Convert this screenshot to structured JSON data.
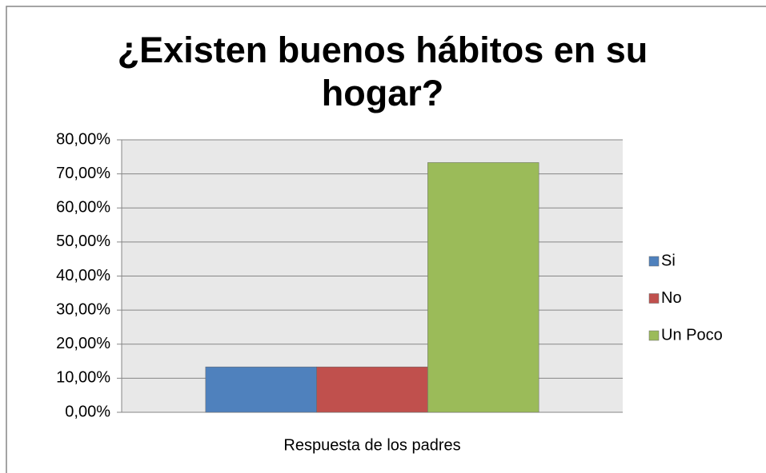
{
  "chart_data": {
    "type": "bar",
    "title": "¿Existen buenos hábitos en su hogar?",
    "categories": [
      "Respuesta de los padres"
    ],
    "series": [
      {
        "name": "Si",
        "color": "#4f81bd",
        "values": [
          13.33
        ]
      },
      {
        "name": "No",
        "color": "#c0504d",
        "values": [
          13.33
        ]
      },
      {
        "name": "Un Poco",
        "color": "#9bbb59",
        "values": [
          73.33
        ]
      }
    ],
    "ylim": [
      0,
      80
    ],
    "yticks": [
      {
        "value": 0,
        "label": "0,00%"
      },
      {
        "value": 10,
        "label": "10,00%"
      },
      {
        "value": 20,
        "label": "20,00%"
      },
      {
        "value": 30,
        "label": "30,00%"
      },
      {
        "value": 40,
        "label": "40,00%"
      },
      {
        "value": 50,
        "label": "50,00%"
      },
      {
        "value": 60,
        "label": "60,00%"
      },
      {
        "value": 70,
        "label": "70,00%"
      },
      {
        "value": 80,
        "label": "80,00%"
      }
    ],
    "grid": true,
    "legend": "right"
  }
}
